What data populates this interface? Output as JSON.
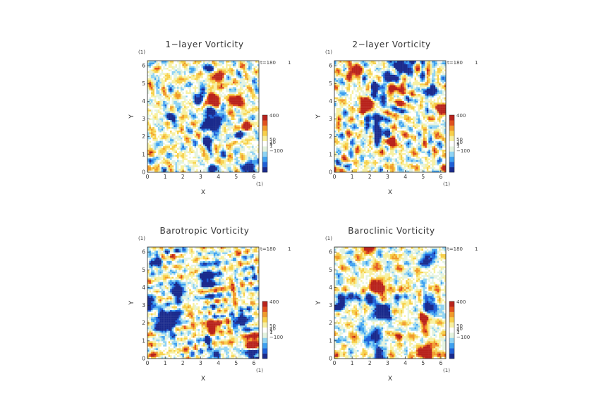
{
  "chart_data": [
    {
      "type": "heatmap",
      "title": "1−layer Vorticity",
      "xlabel": "X",
      "ylabel": "Y",
      "xlim": [
        0,
        6.283
      ],
      "ylim": [
        0,
        6.283
      ],
      "x_ticks": [
        "0",
        "1",
        "2",
        "3",
        "4",
        "5",
        "6"
      ],
      "y_ticks": [
        "0",
        "1",
        "2",
        "3",
        "4",
        "5",
        "6"
      ],
      "x_unit": "(1)",
      "y_unit": "(1)",
      "time_label": "t=180",
      "time_unit": "1",
      "colorbar_labels": [
        "400",
        "50",
        "10",
        "5",
        "1",
        "−100"
      ],
      "seed": 11
    },
    {
      "type": "heatmap",
      "title": "2−layer Vorticity",
      "xlabel": "X",
      "ylabel": "Y",
      "xlim": [
        0,
        6.283
      ],
      "ylim": [
        0,
        6.283
      ],
      "x_ticks": [
        "0",
        "1",
        "2",
        "3",
        "4",
        "5",
        "6"
      ],
      "y_ticks": [
        "0",
        "1",
        "2",
        "3",
        "4",
        "5",
        "6"
      ],
      "x_unit": "(1)",
      "y_unit": "(1)",
      "time_label": "t=180",
      "time_unit": "1",
      "colorbar_labels": [
        "400",
        "50",
        "10",
        "5",
        "1",
        "−100"
      ],
      "seed": 23
    },
    {
      "type": "heatmap",
      "title": "Barotropic Vorticity",
      "xlabel": "X",
      "ylabel": "Y",
      "xlim": [
        0,
        6.283
      ],
      "ylim": [
        0,
        6.283
      ],
      "x_ticks": [
        "0",
        "1",
        "2",
        "3",
        "4",
        "5",
        "6"
      ],
      "y_ticks": [
        "0",
        "1",
        "2",
        "3",
        "4",
        "5",
        "6"
      ],
      "x_unit": "(1)",
      "y_unit": "(1)",
      "time_label": "t=180",
      "time_unit": "1",
      "colorbar_labels": [
        "400",
        "50",
        "10",
        "5",
        "1",
        "−100"
      ],
      "seed": 37
    },
    {
      "type": "heatmap",
      "title": "Baroclinic Vorticity",
      "xlabel": "X",
      "ylabel": "Y",
      "xlim": [
        0,
        6.283
      ],
      "ylim": [
        0,
        6.283
      ],
      "x_ticks": [
        "0",
        "1",
        "2",
        "3",
        "4",
        "5",
        "6"
      ],
      "y_ticks": [
        "0",
        "1",
        "2",
        "3",
        "4",
        "5",
        "6"
      ],
      "x_unit": "(1)",
      "y_unit": "(1)",
      "time_label": "t=180",
      "time_unit": "1",
      "colorbar_labels": [
        "400",
        "50",
        "10",
        "5",
        "1",
        "−100"
      ],
      "seed": 53
    }
  ],
  "colorscale": [
    "#1a2a8c",
    "#1f5fd6",
    "#3fa0ef",
    "#8fd3f3",
    "#e4f3df",
    "#ffffff",
    "#f7f0a0",
    "#f7cf4a",
    "#f09a2c",
    "#e0501f",
    "#b8231c"
  ]
}
